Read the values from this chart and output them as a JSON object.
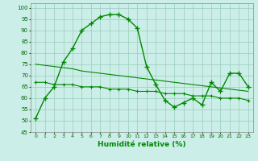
{
  "xlabel": "Humidité relative (%)",
  "background_color": "#cceee8",
  "grid_color": "#99ccbb",
  "line_color": "#008800",
  "ylim": [
    45,
    102
  ],
  "xlim": [
    -0.5,
    23.5
  ],
  "yticks": [
    45,
    50,
    55,
    60,
    65,
    70,
    75,
    80,
    85,
    90,
    95,
    100
  ],
  "xticks": [
    0,
    1,
    2,
    3,
    4,
    5,
    6,
    7,
    8,
    9,
    10,
    11,
    12,
    13,
    14,
    15,
    16,
    17,
    18,
    19,
    20,
    21,
    22,
    23
  ],
  "series1": [
    51,
    60,
    65,
    76,
    82,
    90,
    93,
    96,
    97,
    97,
    95,
    91,
    74,
    66,
    59,
    56,
    58,
    60,
    57,
    67,
    63,
    71,
    71,
    65
  ],
  "series2": [
    67,
    67,
    66,
    66,
    66,
    65,
    65,
    65,
    64,
    64,
    64,
    63,
    63,
    63,
    62,
    62,
    62,
    61,
    61,
    61,
    60,
    60,
    60,
    59
  ],
  "trend": [
    75,
    74.5,
    74,
    73.5,
    73,
    72,
    71.5,
    71,
    70.5,
    70,
    69.5,
    69,
    68.5,
    68,
    67.5,
    67,
    66.5,
    66,
    65.5,
    65,
    64.5,
    64,
    63.5,
    63
  ]
}
